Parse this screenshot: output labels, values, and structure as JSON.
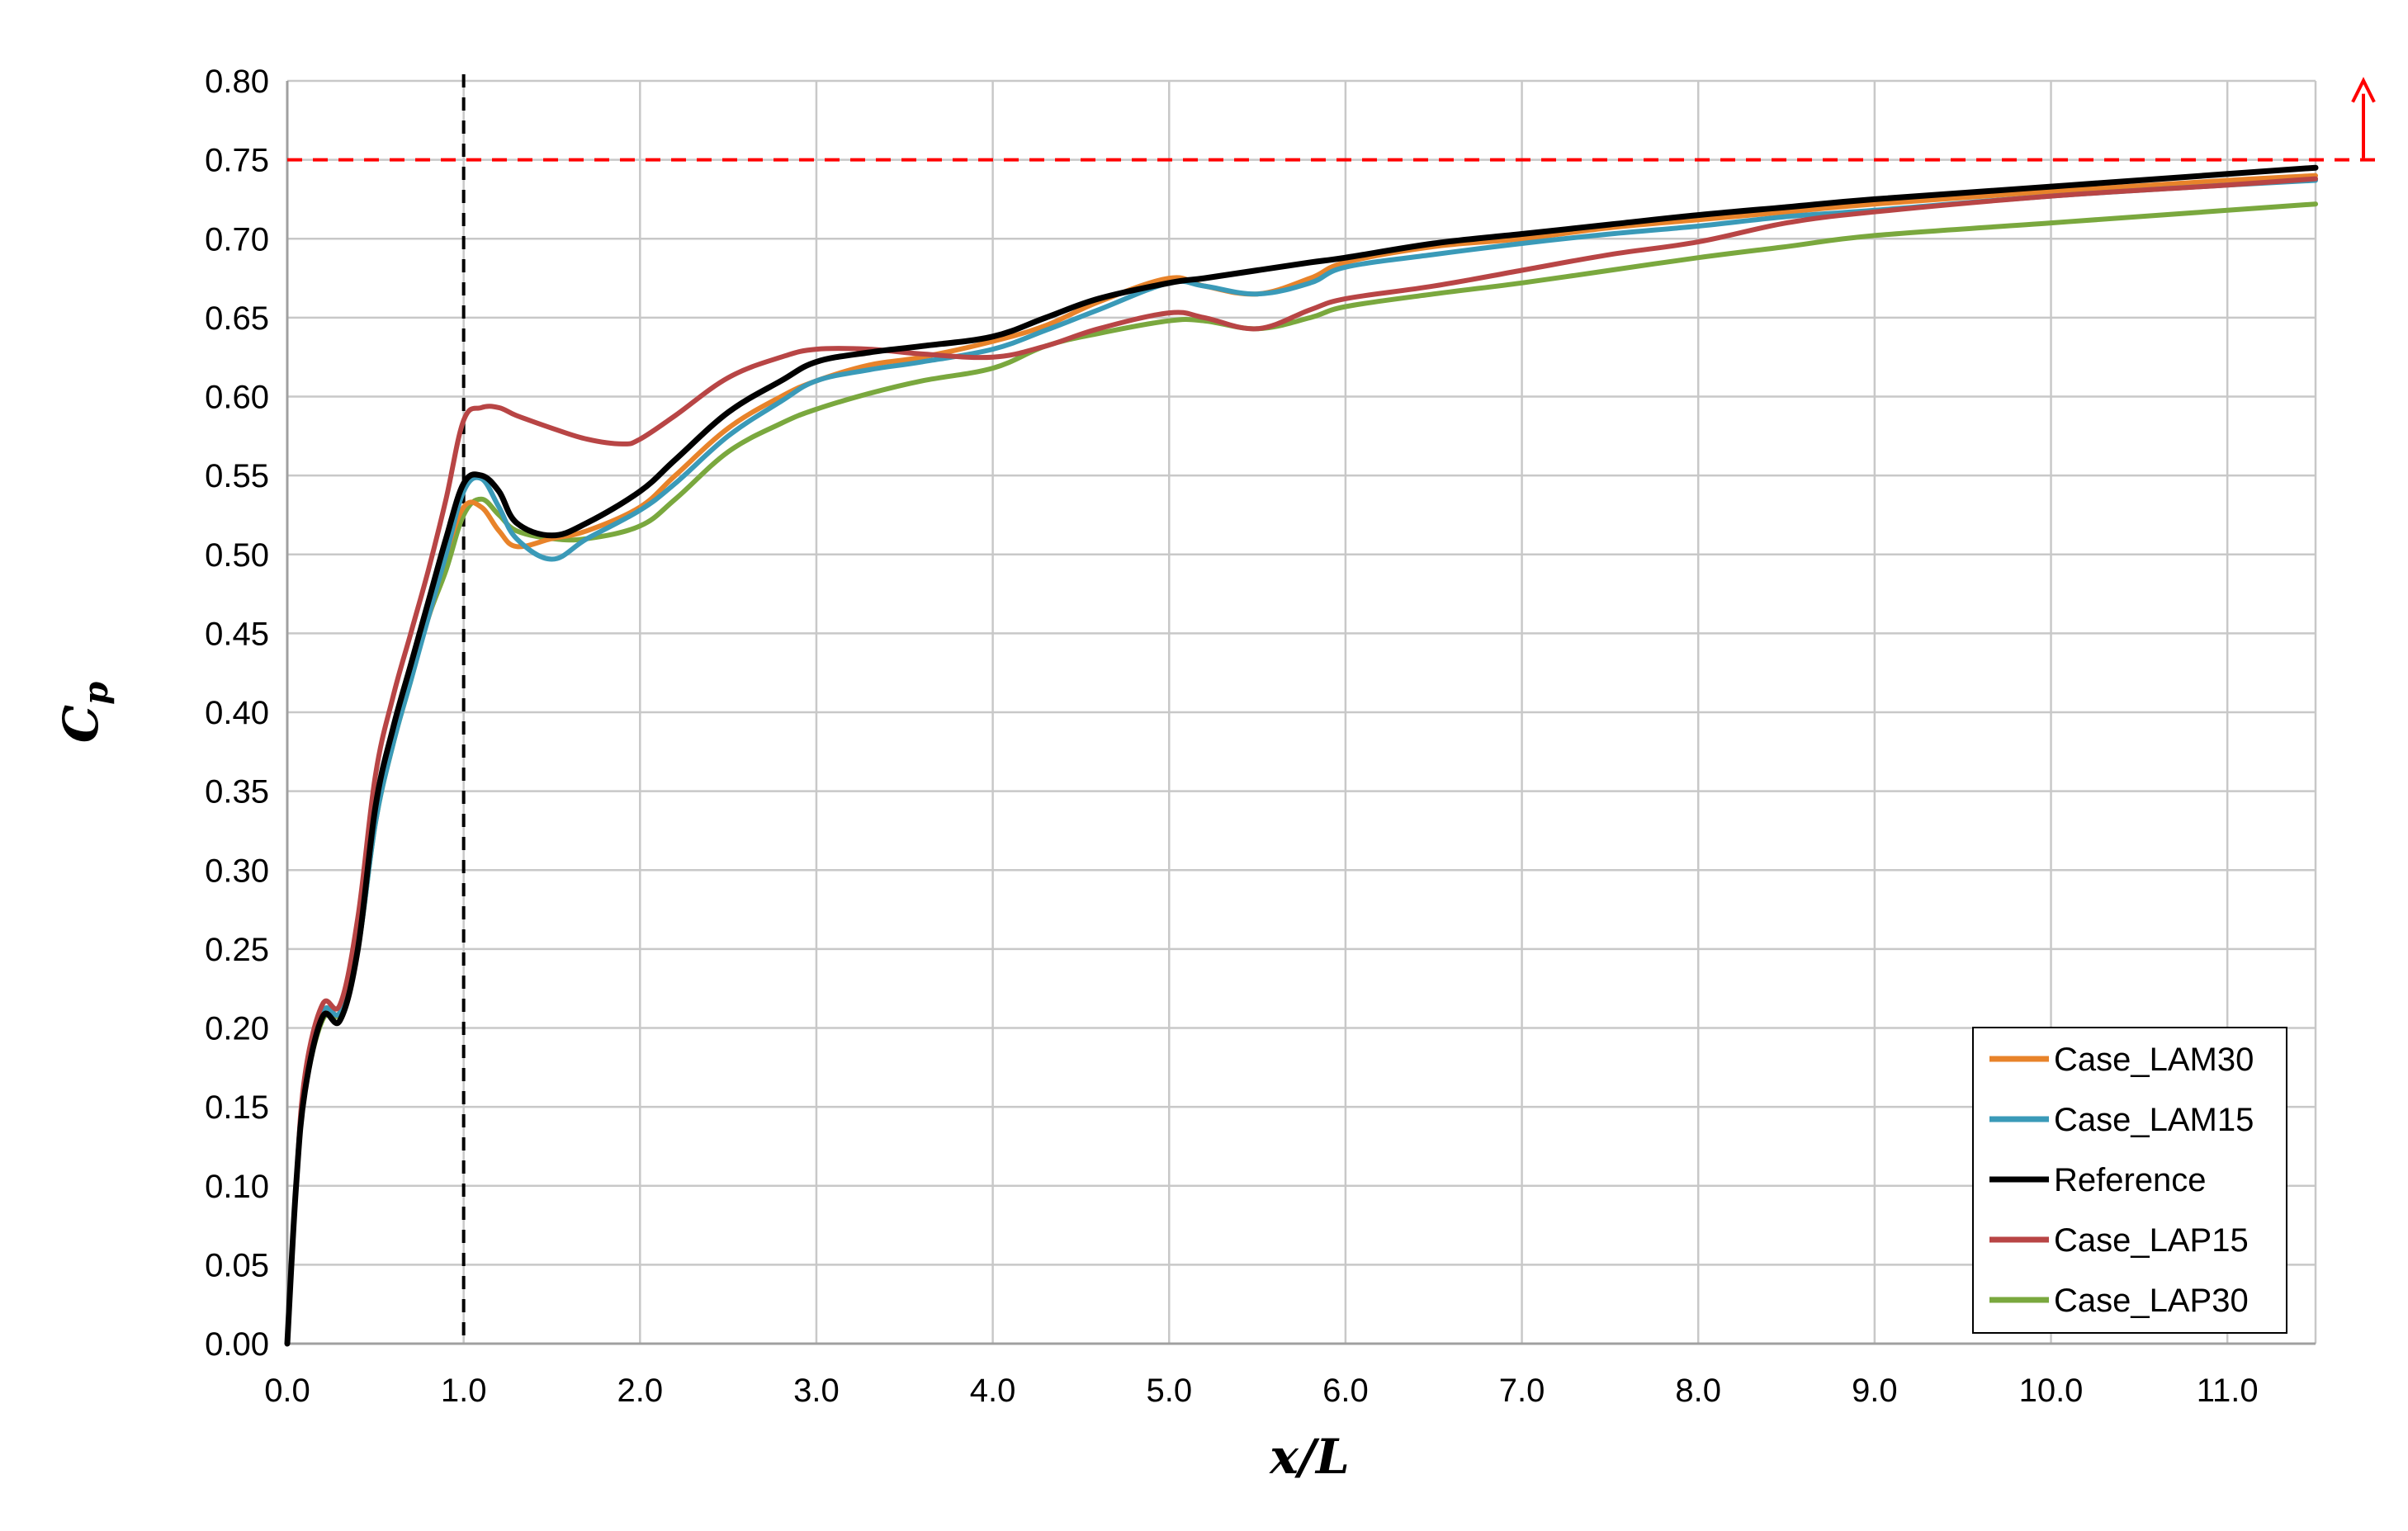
{
  "chart_data": {
    "type": "line",
    "title": "",
    "xlabel": "x/L",
    "ylabel": "C_p",
    "xlim": [
      0,
      11.5
    ],
    "ylim": [
      0,
      0.8
    ],
    "x_tick_labels": [
      "0.0",
      "1.0",
      "2.0",
      "3.0",
      "4.0",
      "5.0",
      "6.0",
      "7.0",
      "8.0",
      "9.0",
      "10.0",
      "11.0"
    ],
    "y_tick_labels": [
      "0.00",
      "0.05",
      "0.10",
      "0.15",
      "0.20",
      "0.25",
      "0.30",
      "0.35",
      "0.40",
      "0.45",
      "0.50",
      "0.55",
      "0.60",
      "0.65",
      "0.70",
      "0.75",
      "0.80"
    ],
    "grid": true,
    "legend_position": "bottom-right",
    "reference_lines": [
      {
        "orientation": "vertical",
        "x": 1.0,
        "color": "#000000",
        "style": "dashed"
      },
      {
        "orientation": "horizontal",
        "y": 0.75,
        "color": "#ff0000",
        "style": "dashed",
        "arrow": "up"
      }
    ],
    "series": [
      {
        "name": "Case_LAM30",
        "color": "#e8832a",
        "x": [
          0,
          0.05,
          0.1,
          0.2,
          0.3,
          0.4,
          0.5,
          0.6,
          0.7,
          0.8,
          0.9,
          1.0,
          1.1,
          1.2,
          1.3,
          1.5,
          1.7,
          2.0,
          2.2,
          2.5,
          2.8,
          3.0,
          3.3,
          3.6,
          4.0,
          4.3,
          4.6,
          5.0,
          5.2,
          5.5,
          5.8,
          6.0,
          6.5,
          7.0,
          7.5,
          8.0,
          8.5,
          9.0,
          10.0,
          11.0,
          11.5
        ],
        "y": [
          0,
          0.1,
          0.16,
          0.21,
          0.21,
          0.25,
          0.34,
          0.39,
          0.43,
          0.46,
          0.5,
          0.53,
          0.53,
          0.515,
          0.505,
          0.51,
          0.515,
          0.53,
          0.55,
          0.58,
          0.6,
          0.61,
          0.62,
          0.625,
          0.635,
          0.645,
          0.66,
          0.675,
          0.67,
          0.665,
          0.675,
          0.685,
          0.695,
          0.7,
          0.707,
          0.712,
          0.717,
          0.722,
          0.73,
          0.737,
          0.74
        ]
      },
      {
        "name": "Case_LAM15",
        "color": "#3a9ab8",
        "x": [
          0,
          0.05,
          0.1,
          0.2,
          0.3,
          0.4,
          0.5,
          0.6,
          0.7,
          0.8,
          0.9,
          1.0,
          1.1,
          1.2,
          1.3,
          1.5,
          1.7,
          2.0,
          2.2,
          2.5,
          2.8,
          3.0,
          3.3,
          3.6,
          4.0,
          4.3,
          4.6,
          5.0,
          5.2,
          5.5,
          5.8,
          6.0,
          6.5,
          7.0,
          7.5,
          8.0,
          8.5,
          9.0,
          10.0,
          11.0,
          11.5
        ],
        "y": [
          0,
          0.1,
          0.16,
          0.21,
          0.21,
          0.25,
          0.33,
          0.38,
          0.42,
          0.46,
          0.5,
          0.54,
          0.548,
          0.53,
          0.51,
          0.497,
          0.51,
          0.528,
          0.545,
          0.575,
          0.597,
          0.61,
          0.617,
          0.622,
          0.63,
          0.642,
          0.655,
          0.672,
          0.67,
          0.665,
          0.672,
          0.682,
          0.69,
          0.697,
          0.703,
          0.708,
          0.714,
          0.718,
          0.727,
          0.734,
          0.737
        ]
      },
      {
        "name": "Reference",
        "color": "#000000",
        "x": [
          0,
          0.05,
          0.1,
          0.2,
          0.3,
          0.4,
          0.5,
          0.6,
          0.7,
          0.8,
          0.9,
          1.0,
          1.1,
          1.2,
          1.3,
          1.5,
          1.7,
          2.0,
          2.2,
          2.5,
          2.8,
          3.0,
          3.3,
          3.6,
          4.0,
          4.3,
          4.6,
          5.0,
          5.2,
          5.5,
          5.8,
          6.0,
          6.5,
          7.0,
          7.5,
          8.0,
          8.5,
          9.0,
          10.0,
          11.0,
          11.5
        ],
        "y": [
          0,
          0.1,
          0.16,
          0.207,
          0.205,
          0.25,
          0.34,
          0.39,
          0.43,
          0.47,
          0.51,
          0.545,
          0.55,
          0.54,
          0.52,
          0.512,
          0.52,
          0.54,
          0.56,
          0.59,
          0.61,
          0.622,
          0.628,
          0.632,
          0.638,
          0.65,
          0.662,
          0.672,
          0.675,
          0.68,
          0.685,
          0.688,
          0.697,
          0.703,
          0.709,
          0.715,
          0.72,
          0.725,
          0.733,
          0.741,
          0.745
        ]
      },
      {
        "name": "Case_LAP15",
        "color": "#b84545",
        "x": [
          0,
          0.05,
          0.1,
          0.2,
          0.3,
          0.4,
          0.5,
          0.6,
          0.7,
          0.8,
          0.9,
          1.0,
          1.1,
          1.2,
          1.3,
          1.5,
          1.7,
          1.9,
          2.0,
          2.2,
          2.5,
          2.8,
          3.0,
          3.3,
          3.6,
          4.0,
          4.3,
          4.6,
          5.0,
          5.2,
          5.5,
          5.8,
          6.0,
          6.5,
          7.0,
          7.5,
          8.0,
          8.5,
          9.0,
          10.0,
          11.0,
          11.5
        ],
        "y": [
          0,
          0.1,
          0.17,
          0.215,
          0.215,
          0.27,
          0.36,
          0.41,
          0.45,
          0.49,
          0.535,
          0.585,
          0.593,
          0.593,
          0.588,
          0.58,
          0.573,
          0.57,
          0.573,
          0.588,
          0.612,
          0.625,
          0.63,
          0.63,
          0.627,
          0.625,
          0.632,
          0.643,
          0.653,
          0.65,
          0.643,
          0.655,
          0.662,
          0.67,
          0.68,
          0.69,
          0.698,
          0.71,
          0.717,
          0.727,
          0.734,
          0.738
        ]
      },
      {
        "name": "Case_LAP30",
        "color": "#7aa83e",
        "x": [
          0,
          0.05,
          0.1,
          0.2,
          0.3,
          0.4,
          0.5,
          0.6,
          0.7,
          0.8,
          0.9,
          1.0,
          1.1,
          1.2,
          1.3,
          1.5,
          1.7,
          2.0,
          2.2,
          2.5,
          2.8,
          3.0,
          3.3,
          3.6,
          4.0,
          4.3,
          4.6,
          5.0,
          5.2,
          5.5,
          5.8,
          6.0,
          6.5,
          7.0,
          7.5,
          8.0,
          8.5,
          9.0,
          10.0,
          11.0,
          11.5
        ],
        "y": [
          0,
          0.1,
          0.16,
          0.205,
          0.21,
          0.25,
          0.33,
          0.38,
          0.42,
          0.46,
          0.49,
          0.525,
          0.535,
          0.525,
          0.515,
          0.51,
          0.51,
          0.518,
          0.535,
          0.565,
          0.583,
          0.592,
          0.602,
          0.61,
          0.618,
          0.632,
          0.64,
          0.648,
          0.648,
          0.643,
          0.65,
          0.657,
          0.665,
          0.672,
          0.68,
          0.688,
          0.695,
          0.702,
          0.71,
          0.718,
          0.722
        ]
      }
    ]
  }
}
